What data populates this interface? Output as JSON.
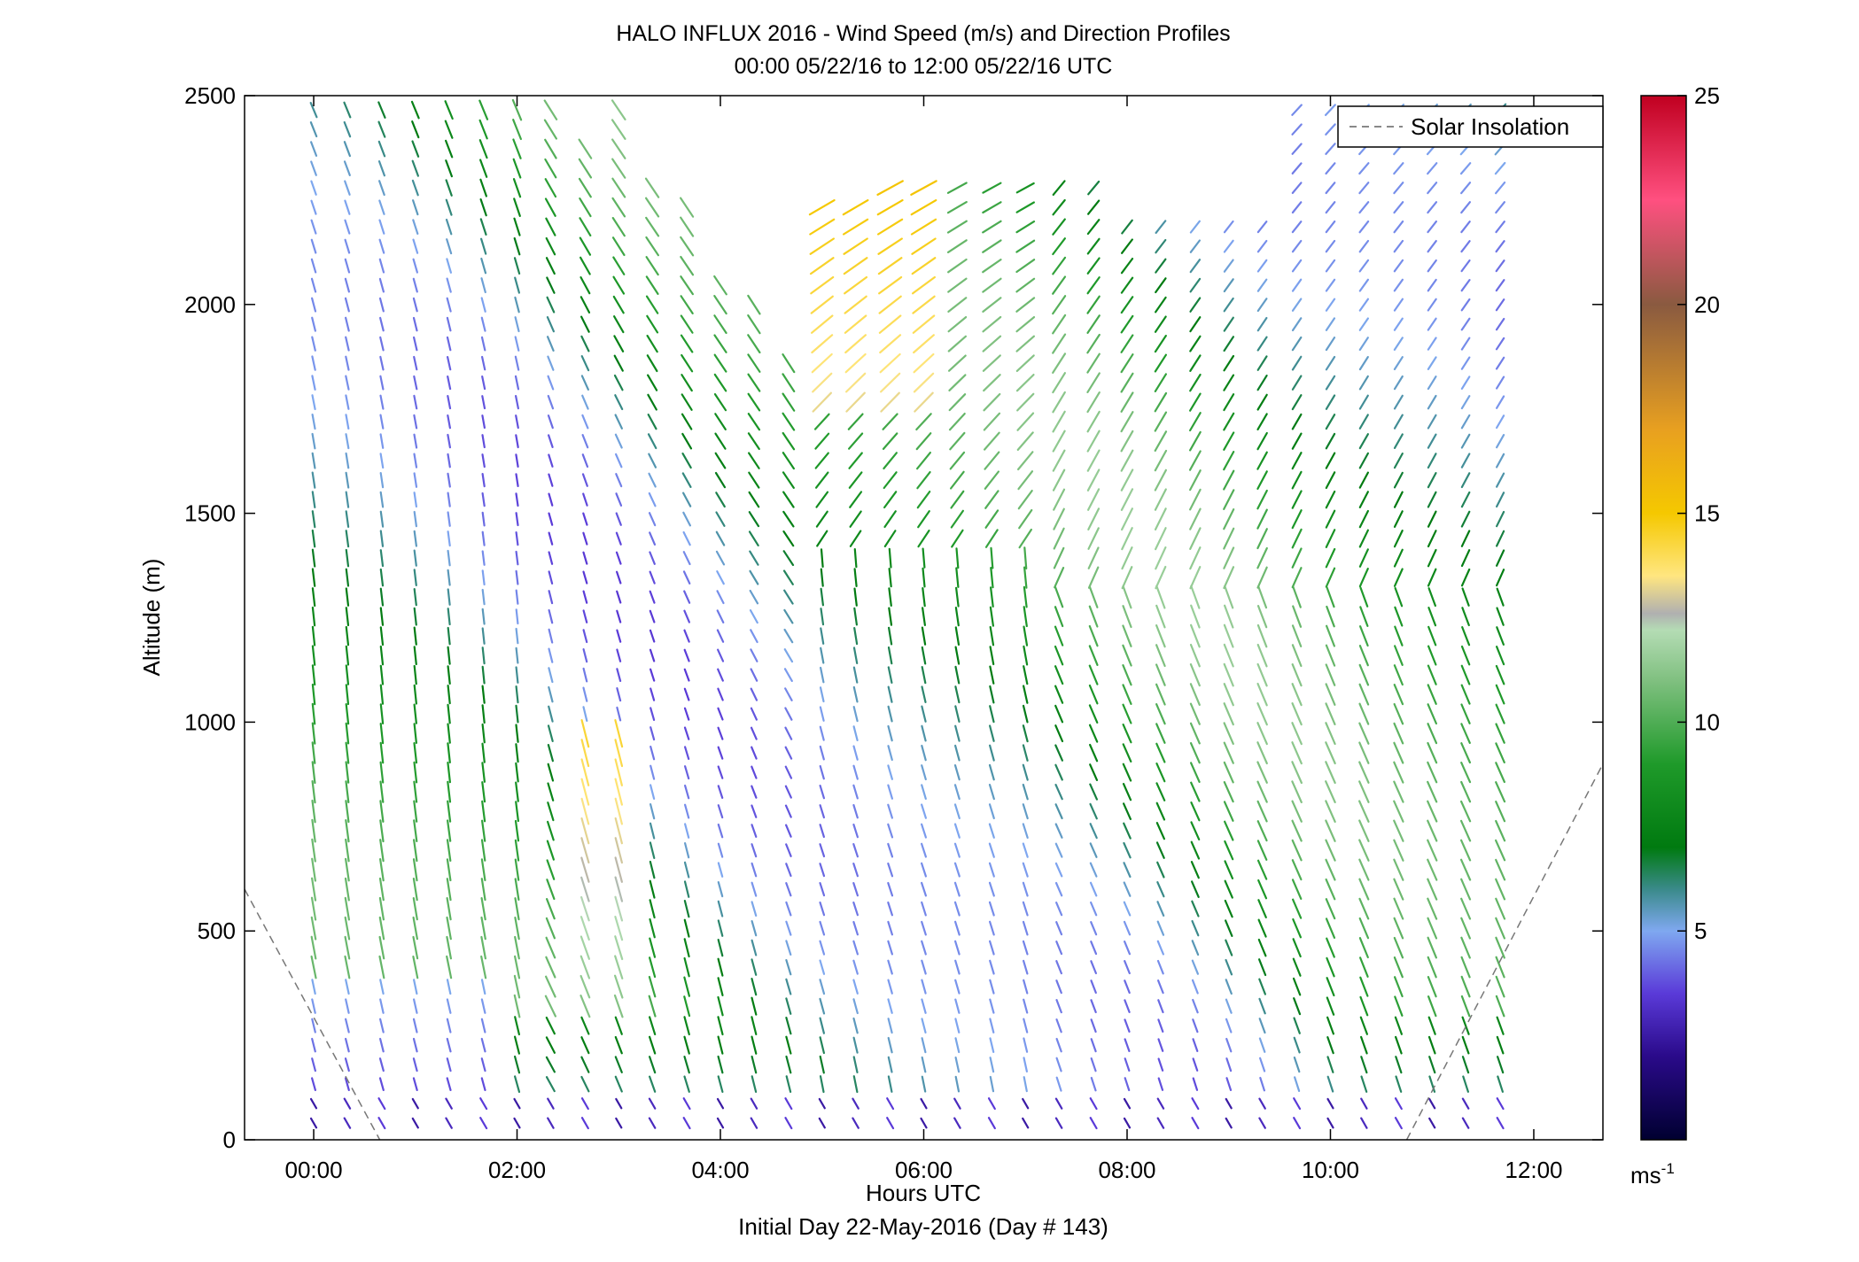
{
  "chart_data": {
    "type": "wind_profile",
    "title": "HALO INFLUX 2016 - Wind Speed (m/s) and Direction Profiles",
    "subtitle": "00:00 05/22/16 to 12:00 05/22/16  UTC",
    "xlabel": "Hours UTC",
    "xlabel2": "Initial Day 22-May-2016 (Day # 143)",
    "ylabel": "Altitude (m)",
    "xlim_hours": [
      -0.68,
      12.68
    ],
    "ylim": [
      0,
      2500
    ],
    "x_ticks": [
      {
        "value": 0,
        "label": "00:00"
      },
      {
        "value": 2,
        "label": "02:00"
      },
      {
        "value": 4,
        "label": "04:00"
      },
      {
        "value": 6,
        "label": "06:00"
      },
      {
        "value": 8,
        "label": "08:00"
      },
      {
        "value": 10,
        "label": "10:00"
      },
      {
        "value": 12,
        "label": "12:00"
      }
    ],
    "y_ticks": [
      {
        "value": 0,
        "label": "0"
      },
      {
        "value": 500,
        "label": "500"
      },
      {
        "value": 1000,
        "label": "1000"
      },
      {
        "value": 1500,
        "label": "1500"
      },
      {
        "value": 2000,
        "label": "2000"
      },
      {
        "value": 2500,
        "label": "2500"
      }
    ],
    "legend": {
      "label": "Solar Insolation",
      "placement": "top-right",
      "line_color": "#888888"
    },
    "colorbar": {
      "min": 0,
      "max": 25,
      "unit_label": "ms",
      "unit_exponent": "-1",
      "ticks": [
        {
          "value": 5,
          "label": "5"
        },
        {
          "value": 10,
          "label": "10"
        },
        {
          "value": 15,
          "label": "15"
        },
        {
          "value": 20,
          "label": "20"
        },
        {
          "value": 25,
          "label": "25"
        }
      ],
      "stops": [
        {
          "value": 0,
          "color": "#000030"
        },
        {
          "value": 2,
          "color": "#2a0a8a"
        },
        {
          "value": 3.5,
          "color": "#5a3ad8"
        },
        {
          "value": 5,
          "color": "#7fa8f0"
        },
        {
          "value": 6,
          "color": "#3a8a8a"
        },
        {
          "value": 7,
          "color": "#007a10"
        },
        {
          "value": 9,
          "color": "#1f9a2a"
        },
        {
          "value": 11,
          "color": "#80c080"
        },
        {
          "value": 12.2,
          "color": "#b4dcb4"
        },
        {
          "value": 12.6,
          "color": "#b0b0b0"
        },
        {
          "value": 13.5,
          "color": "#ffe680"
        },
        {
          "value": 15,
          "color": "#f5c800"
        },
        {
          "value": 17,
          "color": "#e8a020"
        },
        {
          "value": 20,
          "color": "#8a5a40"
        },
        {
          "value": 22.5,
          "color": "#ff5080"
        },
        {
          "value": 25,
          "color": "#c00020"
        }
      ]
    },
    "insolation": [
      {
        "x": [
          -0.68,
          0.65
        ],
        "y": [
          600,
          0
        ]
      },
      {
        "x": [
          10.75,
          12.68
        ],
        "y": [
          0,
          900
        ]
      }
    ],
    "profile_times": [
      0,
      0.33,
      0.67,
      1.0,
      1.33,
      1.67,
      2.0,
      2.33,
      2.67,
      3.0,
      3.33,
      3.67,
      4.0,
      4.33,
      4.67,
      5.0,
      5.33,
      5.67,
      6.0,
      6.33,
      6.67,
      7.0,
      7.33,
      7.67,
      8.0,
      8.33,
      8.67,
      9.0,
      9.33,
      9.67,
      10.0,
      10.33,
      10.67,
      11.0,
      11.33,
      11.67
    ],
    "profile_top_m": [
      2500,
      2500,
      2500,
      2500,
      2500,
      2500,
      2500,
      2500,
      2400,
      2500,
      2300,
      2250,
      2050,
      2000,
      1900,
      2250,
      2250,
      2300,
      2300,
      2300,
      2300,
      2300,
      2300,
      2300,
      2200,
      2200,
      2200,
      2200,
      2200,
      2500,
      2500,
      2500,
      2500,
      2500,
      2500,
      2500
    ]
  }
}
